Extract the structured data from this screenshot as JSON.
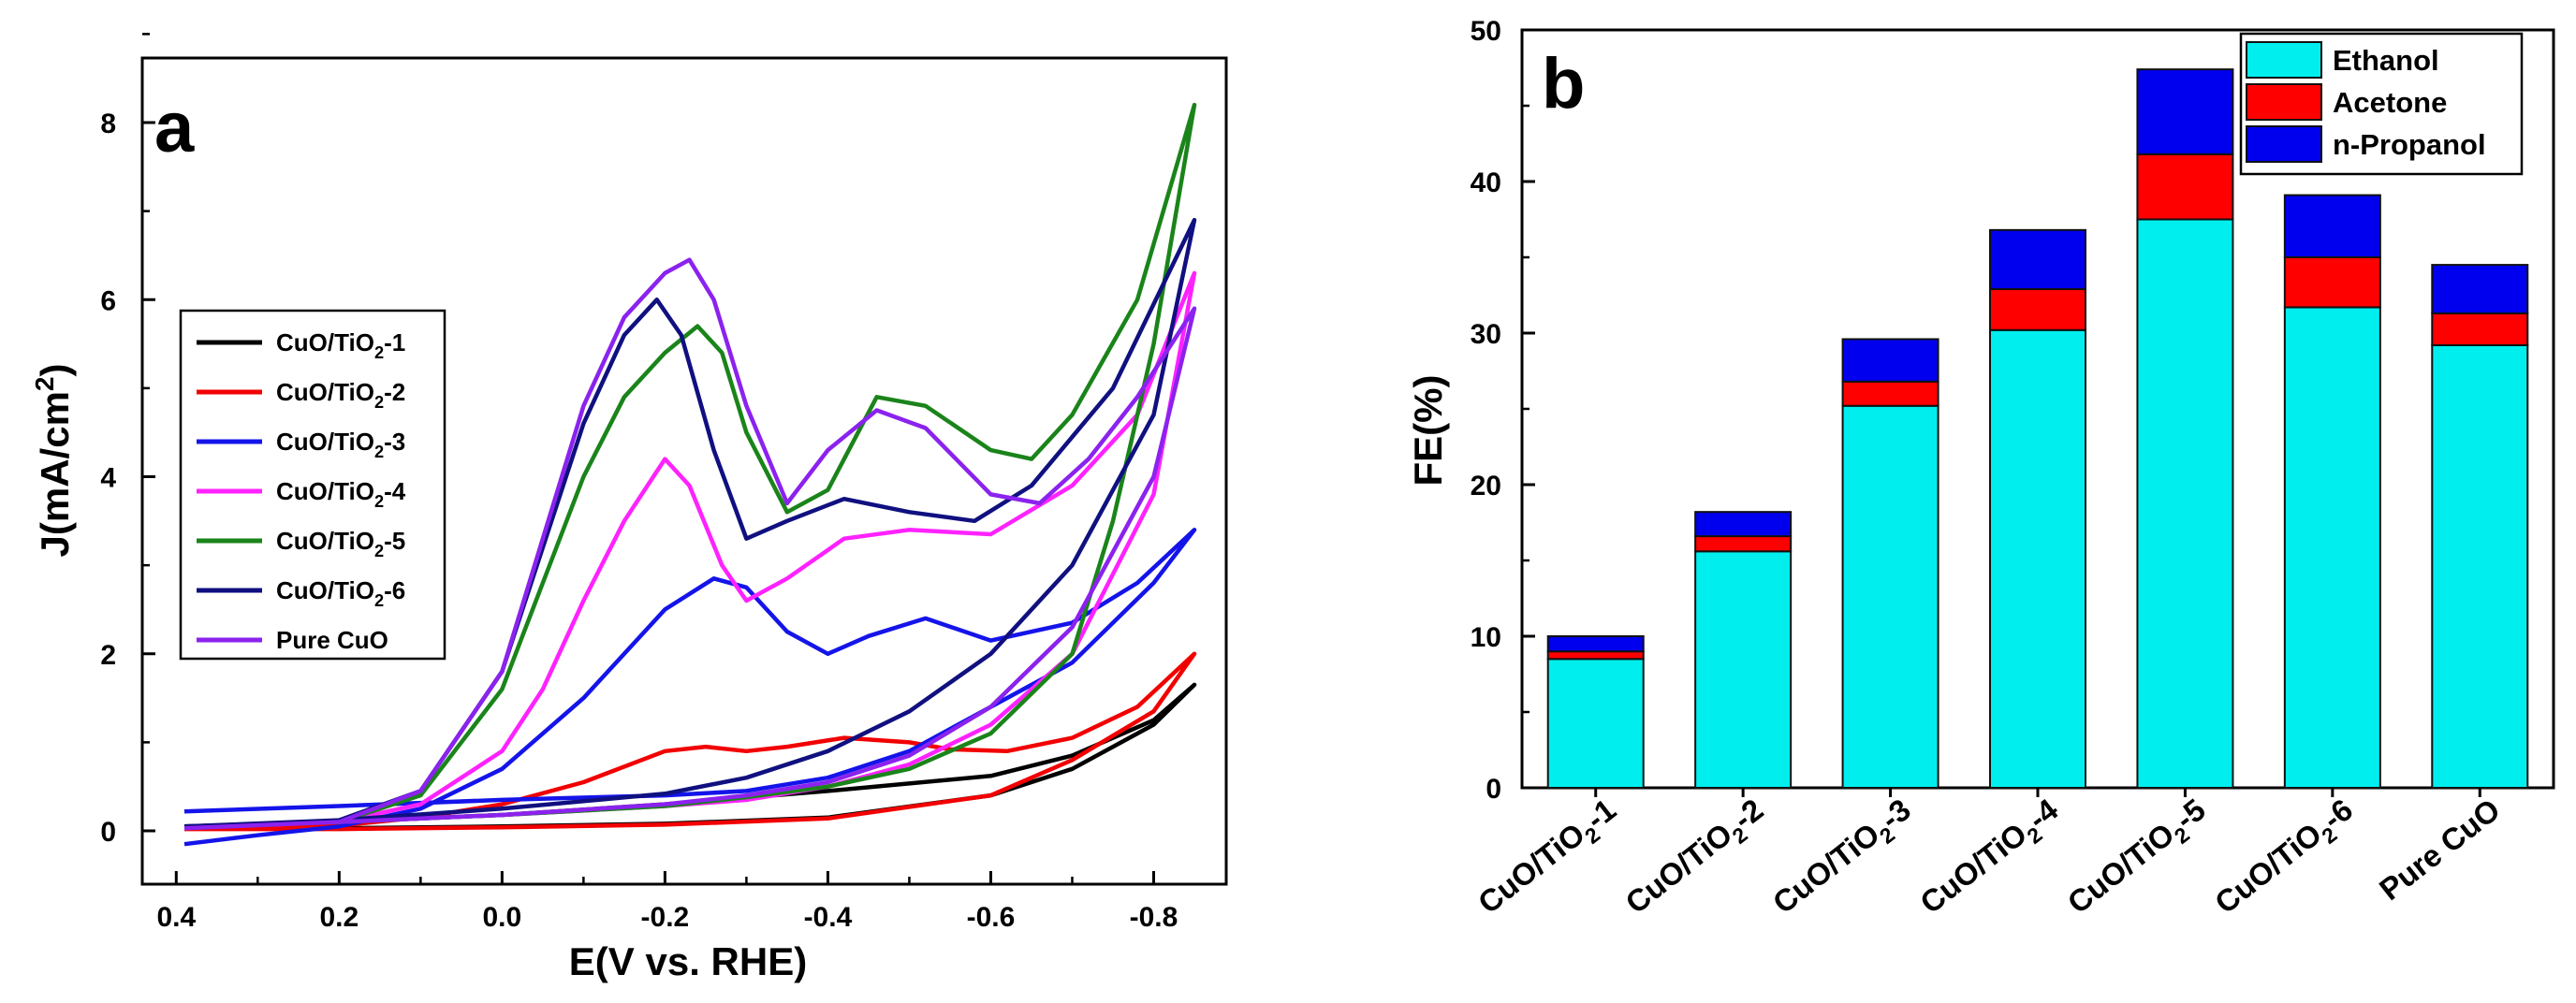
{
  "chart_data": [
    {
      "panel_label": "a",
      "type": "line",
      "xlabel": "E(V vs. RHE)",
      "ylabel_main": "J(mA/cm",
      "ylabel_sup": "2",
      "ylabel_close": ")",
      "xlim": [
        0.4,
        -0.9
      ],
      "ylim": [
        -0.2,
        8.8
      ],
      "xticks": [
        0.4,
        0.2,
        0.0,
        -0.2,
        -0.4,
        -0.6,
        -0.8
      ],
      "xtick_labels": [
        "0.4",
        "0.2",
        "0.0",
        "-0.2",
        "-0.4",
        "-0.6",
        "-0.8"
      ],
      "yticks": [
        0,
        2,
        4,
        6,
        8
      ],
      "ytick_labels": [
        "0",
        "2",
        "4",
        "6",
        "8"
      ],
      "legend_position": "center-left",
      "series": [
        {
          "name": "CuO/TiO2-1",
          "label_main": "CuO/TiO",
          "label_sub": "2",
          "label_tail": "-1",
          "color": "#000000",
          "forward": [
            [
              0.39,
              0.05
            ],
            [
              0.2,
              0.1
            ],
            [
              0.0,
              0.18
            ],
            [
              -0.2,
              0.3
            ],
            [
              -0.4,
              0.45
            ],
            [
              -0.6,
              0.62
            ],
            [
              -0.7,
              0.85
            ],
            [
              -0.8,
              1.25
            ],
            [
              -0.85,
              1.65
            ]
          ],
          "reverse": [
            [
              -0.85,
              1.65
            ],
            [
              -0.8,
              1.2
            ],
            [
              -0.7,
              0.7
            ],
            [
              -0.6,
              0.4
            ],
            [
              -0.4,
              0.15
            ],
            [
              -0.2,
              0.08
            ],
            [
              0.0,
              0.05
            ],
            [
              0.2,
              0.03
            ],
            [
              0.39,
              0.05
            ]
          ]
        },
        {
          "name": "CuO/TiO2-2",
          "label_main": "CuO/TiO",
          "label_sub": "2",
          "label_tail": "-2",
          "color": "#f20000",
          "forward": [
            [
              0.39,
              0.02
            ],
            [
              0.2,
              0.06
            ],
            [
              0.1,
              0.15
            ],
            [
              0.0,
              0.3
            ],
            [
              -0.1,
              0.55
            ],
            [
              -0.2,
              0.9
            ],
            [
              -0.25,
              0.95
            ],
            [
              -0.3,
              0.9
            ],
            [
              -0.35,
              0.95
            ],
            [
              -0.42,
              1.05
            ],
            [
              -0.5,
              1.0
            ],
            [
              -0.55,
              0.92
            ],
            [
              -0.62,
              0.9
            ],
            [
              -0.7,
              1.05
            ],
            [
              -0.78,
              1.4
            ],
            [
              -0.85,
              2.0
            ]
          ],
          "reverse": [
            [
              -0.85,
              2.0
            ],
            [
              -0.8,
              1.35
            ],
            [
              -0.7,
              0.8
            ],
            [
              -0.6,
              0.4
            ],
            [
              -0.4,
              0.14
            ],
            [
              -0.2,
              0.07
            ],
            [
              0.0,
              0.04
            ],
            [
              0.2,
              0.02
            ],
            [
              0.39,
              0.02
            ]
          ]
        },
        {
          "name": "CuO/TiO2-3",
          "label_main": "CuO/TiO",
          "label_sub": "2",
          "label_tail": "-3",
          "color": "#1414ea",
          "forward": [
            [
              0.39,
              -0.15
            ],
            [
              0.3,
              -0.05
            ],
            [
              0.2,
              0.05
            ],
            [
              0.1,
              0.25
            ],
            [
              0.0,
              0.7
            ],
            [
              -0.1,
              1.5
            ],
            [
              -0.2,
              2.5
            ],
            [
              -0.26,
              2.85
            ],
            [
              -0.3,
              2.75
            ],
            [
              -0.35,
              2.25
            ],
            [
              -0.4,
              2.0
            ],
            [
              -0.45,
              2.2
            ],
            [
              -0.52,
              2.4
            ],
            [
              -0.6,
              2.15
            ],
            [
              -0.7,
              2.35
            ],
            [
              -0.78,
              2.8
            ],
            [
              -0.85,
              3.4
            ]
          ],
          "reverse": [
            [
              -0.85,
              3.4
            ],
            [
              -0.8,
              2.8
            ],
            [
              -0.7,
              1.9
            ],
            [
              -0.6,
              1.4
            ],
            [
              -0.5,
              0.9
            ],
            [
              -0.4,
              0.6
            ],
            [
              -0.3,
              0.45
            ],
            [
              -0.2,
              0.4
            ],
            [
              0.0,
              0.35
            ],
            [
              0.2,
              0.28
            ],
            [
              0.39,
              0.22
            ]
          ]
        },
        {
          "name": "CuO/TiO2-4",
          "label_main": "CuO/TiO",
          "label_sub": "2",
          "label_tail": "-4",
          "color": "#ff22ff",
          "forward": [
            [
              0.39,
              0.05
            ],
            [
              0.2,
              0.1
            ],
            [
              0.1,
              0.3
            ],
            [
              0.0,
              0.9
            ],
            [
              -0.05,
              1.6
            ],
            [
              -0.1,
              2.6
            ],
            [
              -0.15,
              3.5
            ],
            [
              -0.2,
              4.2
            ],
            [
              -0.23,
              3.9
            ],
            [
              -0.27,
              3.0
            ],
            [
              -0.3,
              2.6
            ],
            [
              -0.35,
              2.85
            ],
            [
              -0.42,
              3.3
            ],
            [
              -0.5,
              3.4
            ],
            [
              -0.6,
              3.35
            ],
            [
              -0.7,
              3.9
            ],
            [
              -0.78,
              4.7
            ],
            [
              -0.85,
              6.3
            ]
          ],
          "reverse": [
            [
              -0.85,
              6.3
            ],
            [
              -0.8,
              3.8
            ],
            [
              -0.7,
              2.0
            ],
            [
              -0.6,
              1.2
            ],
            [
              -0.5,
              0.75
            ],
            [
              -0.4,
              0.5
            ],
            [
              -0.3,
              0.35
            ],
            [
              -0.2,
              0.28
            ],
            [
              0.0,
              0.18
            ],
            [
              0.2,
              0.1
            ],
            [
              0.39,
              0.05
            ]
          ]
        },
        {
          "name": "CuO/TiO2-5",
          "label_main": "CuO/TiO",
          "label_sub": "2",
          "label_tail": "-5",
          "color": "#1a841a",
          "forward": [
            [
              0.39,
              0.05
            ],
            [
              0.2,
              0.1
            ],
            [
              0.1,
              0.4
            ],
            [
              0.0,
              1.6
            ],
            [
              -0.05,
              2.8
            ],
            [
              -0.1,
              4.0
            ],
            [
              -0.15,
              4.9
            ],
            [
              -0.2,
              5.4
            ],
            [
              -0.24,
              5.7
            ],
            [
              -0.27,
              5.4
            ],
            [
              -0.3,
              4.5
            ],
            [
              -0.35,
              3.6
            ],
            [
              -0.4,
              3.85
            ],
            [
              -0.46,
              4.9
            ],
            [
              -0.52,
              4.8
            ],
            [
              -0.6,
              4.3
            ],
            [
              -0.65,
              4.2
            ],
            [
              -0.7,
              4.7
            ],
            [
              -0.78,
              6.0
            ],
            [
              -0.85,
              8.2
            ]
          ],
          "reverse": [
            [
              -0.85,
              8.2
            ],
            [
              -0.8,
              5.5
            ],
            [
              -0.75,
              3.5
            ],
            [
              -0.7,
              2.0
            ],
            [
              -0.6,
              1.1
            ],
            [
              -0.5,
              0.7
            ],
            [
              -0.4,
              0.5
            ],
            [
              -0.3,
              0.38
            ],
            [
              -0.2,
              0.28
            ],
            [
              0.0,
              0.18
            ],
            [
              0.2,
              0.1
            ],
            [
              0.39,
              0.05
            ]
          ]
        },
        {
          "name": "CuO/TiO2-6",
          "label_main": "CuO/TiO",
          "label_sub": "2",
          "label_tail": "-6",
          "color": "#101080",
          "forward": [
            [
              0.39,
              0.05
            ],
            [
              0.2,
              0.12
            ],
            [
              0.1,
              0.45
            ],
            [
              0.0,
              1.8
            ],
            [
              -0.05,
              3.2
            ],
            [
              -0.1,
              4.6
            ],
            [
              -0.15,
              5.6
            ],
            [
              -0.19,
              6.0
            ],
            [
              -0.22,
              5.6
            ],
            [
              -0.26,
              4.3
            ],
            [
              -0.3,
              3.3
            ],
            [
              -0.35,
              3.5
            ],
            [
              -0.42,
              3.75
            ],
            [
              -0.5,
              3.6
            ],
            [
              -0.58,
              3.5
            ],
            [
              -0.65,
              3.9
            ],
            [
              -0.75,
              5.0
            ],
            [
              -0.85,
              6.9
            ]
          ],
          "reverse": [
            [
              -0.85,
              6.9
            ],
            [
              -0.8,
              4.7
            ],
            [
              -0.7,
              3.0
            ],
            [
              -0.6,
              2.0
            ],
            [
              -0.5,
              1.35
            ],
            [
              -0.4,
              0.9
            ],
            [
              -0.3,
              0.6
            ],
            [
              -0.2,
              0.42
            ],
            [
              0.0,
              0.25
            ],
            [
              0.2,
              0.12
            ],
            [
              0.39,
              0.05
            ]
          ]
        },
        {
          "name": "Pure CuO",
          "label_main": "Pure CuO",
          "label_sub": "",
          "label_tail": "",
          "color": "#8b22ee",
          "forward": [
            [
              0.39,
              0.03
            ],
            [
              0.2,
              0.1
            ],
            [
              0.1,
              0.45
            ],
            [
              0.0,
              1.8
            ],
            [
              -0.05,
              3.3
            ],
            [
              -0.1,
              4.8
            ],
            [
              -0.15,
              5.8
            ],
            [
              -0.2,
              6.3
            ],
            [
              -0.23,
              6.45
            ],
            [
              -0.26,
              6.0
            ],
            [
              -0.3,
              4.8
            ],
            [
              -0.35,
              3.7
            ],
            [
              -0.4,
              4.3
            ],
            [
              -0.46,
              4.75
            ],
            [
              -0.52,
              4.55
            ],
            [
              -0.6,
              3.8
            ],
            [
              -0.66,
              3.7
            ],
            [
              -0.72,
              4.2
            ],
            [
              -0.78,
              4.9
            ],
            [
              -0.85,
              5.9
            ]
          ],
          "reverse": [
            [
              -0.85,
              5.9
            ],
            [
              -0.8,
              4.0
            ],
            [
              -0.7,
              2.3
            ],
            [
              -0.6,
              1.4
            ],
            [
              -0.5,
              0.85
            ],
            [
              -0.4,
              0.55
            ],
            [
              -0.3,
              0.4
            ],
            [
              -0.2,
              0.3
            ],
            [
              0.0,
              0.18
            ],
            [
              0.2,
              0.1
            ],
            [
              0.39,
              0.03
            ]
          ]
        }
      ]
    },
    {
      "panel_label": "b",
      "type": "bar",
      "stacked": true,
      "ylabel": "FE(%)",
      "ylim": [
        0,
        50
      ],
      "yticks": [
        0,
        10,
        20,
        30,
        40,
        50
      ],
      "ytick_labels": [
        "0",
        "10",
        "20",
        "30",
        "40",
        "50"
      ],
      "legend_position": "top-right",
      "categories": [
        {
          "main": "CuO/TiO",
          "sub": "2",
          "tail": "-1"
        },
        {
          "main": "CuO/TiO",
          "sub": "2",
          "tail": "-2"
        },
        {
          "main": "CuO/TiO",
          "sub": "2",
          "tail": "-3"
        },
        {
          "main": "CuO/TiO",
          "sub": "2",
          "tail": "-4"
        },
        {
          "main": "CuO/TiO",
          "sub": "2",
          "tail": "-5"
        },
        {
          "main": "CuO/TiO",
          "sub": "2",
          "tail": "-6"
        },
        {
          "main": "Pure CuO",
          "sub": "",
          "tail": ""
        }
      ],
      "series": [
        {
          "name": "Ethanol",
          "color": "#00eeee",
          "values": [
            8.5,
            15.6,
            25.2,
            30.2,
            37.5,
            31.7,
            29.2
          ]
        },
        {
          "name": "Acetone",
          "color": "#ff0000",
          "values": [
            0.5,
            1.0,
            1.6,
            2.7,
            4.3,
            3.3,
            2.1
          ]
        },
        {
          "name": "n-Propanol",
          "color": "#0000ee",
          "values": [
            1.0,
            1.6,
            2.8,
            3.9,
            5.6,
            4.1,
            3.2
          ]
        }
      ]
    }
  ]
}
